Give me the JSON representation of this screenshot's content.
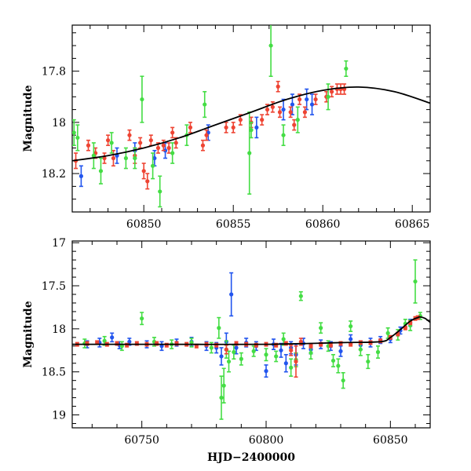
{
  "chart_data": [
    {
      "type": "scatter",
      "panel": "top",
      "xlabel": "",
      "ylabel": "Magnitude",
      "xlim": [
        60846,
        60866
      ],
      "ylim": [
        18.35,
        17.62
      ],
      "y_inverted": true,
      "x_ticks": [
        60850,
        60855,
        60860,
        60865
      ],
      "x_tick_labels": [
        "60850",
        "60855",
        "60860",
        "60865"
      ],
      "y_ticks": [
        17.8,
        18.0,
        18.2
      ],
      "y_tick_labels": [
        "17.8",
        "18",
        "18.2"
      ],
      "grid": false,
      "legend": "none",
      "series": [
        {
          "color": "#2255ee",
          "points": [
            [
              60846.5,
              18.21,
              0.04
            ],
            [
              60848.5,
              18.13,
              0.03
            ],
            [
              60849.5,
              18.11,
              0.03
            ],
            [
              60850.6,
              18.14,
              0.03
            ],
            [
              60851.2,
              18.11,
              0.03
            ],
            [
              60853.6,
              18.04,
              0.03
            ],
            [
              60856.3,
              18.02,
              0.04
            ],
            [
              60857.8,
              17.95,
              0.04
            ],
            [
              60858.3,
              17.93,
              0.04
            ],
            [
              60859.1,
              17.91,
              0.04
            ],
            [
              60859.4,
              17.93,
              0.04
            ]
          ]
        },
        {
          "color": "#ee4433",
          "points": [
            [
              60846.2,
              18.15,
              0.03
            ],
            [
              60846.9,
              18.09,
              0.02
            ],
            [
              60847.3,
              18.12,
              0.02
            ],
            [
              60847.8,
              18.14,
              0.02
            ],
            [
              60848.0,
              18.07,
              0.02
            ],
            [
              60848.3,
              18.14,
              0.03
            ],
            [
              60849.2,
              18.05,
              0.02
            ],
            [
              60849.5,
              18.13,
              0.03
            ],
            [
              60849.8,
              18.08,
              0.02
            ],
            [
              60850.0,
              18.19,
              0.03
            ],
            [
              60850.2,
              18.23,
              0.03
            ],
            [
              60850.4,
              18.07,
              0.02
            ],
            [
              60850.8,
              18.1,
              0.02
            ],
            [
              60851.1,
              18.09,
              0.02
            ],
            [
              60851.4,
              18.1,
              0.02
            ],
            [
              60851.6,
              18.04,
              0.02
            ],
            [
              60851.8,
              18.08,
              0.02
            ],
            [
              60852.6,
              18.02,
              0.02
            ],
            [
              60853.3,
              18.09,
              0.02
            ],
            [
              60853.5,
              18.05,
              0.02
            ],
            [
              60854.6,
              18.02,
              0.02
            ],
            [
              60855.0,
              18.02,
              0.02
            ],
            [
              60855.4,
              17.99,
              0.02
            ],
            [
              60856.0,
              18.0,
              0.02
            ],
            [
              60856.6,
              17.99,
              0.02
            ],
            [
              60856.9,
              17.95,
              0.02
            ],
            [
              60857.2,
              17.94,
              0.02
            ],
            [
              60857.6,
              17.96,
              0.02
            ],
            [
              60858.2,
              17.96,
              0.02
            ],
            [
              60858.7,
              17.91,
              0.02
            ],
            [
              60859.0,
              17.96,
              0.02
            ],
            [
              60859.6,
              17.91,
              0.02
            ],
            [
              60860.2,
              17.9,
              0.02
            ],
            [
              60860.5,
              17.88,
              0.02
            ],
            [
              60860.8,
              17.87,
              0.02
            ],
            [
              60861.0,
              17.87,
              0.02
            ],
            [
              60861.2,
              17.87,
              0.02
            ],
            [
              60857.5,
              17.86,
              0.02
            ],
            [
              60858.4,
              18.01,
              0.02
            ]
          ]
        },
        {
          "color": "#44dd44",
          "points": [
            [
              60846.1,
              18.04,
              0.05
            ],
            [
              60846.3,
              18.06,
              0.05
            ],
            [
              60847.2,
              18.13,
              0.05
            ],
            [
              60847.6,
              18.19,
              0.05
            ],
            [
              60848.2,
              18.08,
              0.04
            ],
            [
              60849.0,
              18.14,
              0.04
            ],
            [
              60849.5,
              18.14,
              0.04
            ],
            [
              60849.9,
              17.91,
              0.09
            ],
            [
              60850.5,
              18.17,
              0.05
            ],
            [
              60850.9,
              18.27,
              0.06
            ],
            [
              60851.6,
              18.12,
              0.04
            ],
            [
              60852.4,
              18.05,
              0.04
            ],
            [
              60853.4,
              17.93,
              0.05
            ],
            [
              60855.9,
              18.12,
              0.16
            ],
            [
              60857.1,
              17.7,
              0.12
            ],
            [
              60857.8,
              18.05,
              0.04
            ],
            [
              60858.6,
              17.99,
              0.05
            ],
            [
              60860.3,
              17.9,
              0.05
            ],
            [
              60861.3,
              17.79,
              0.03
            ],
            [
              60856.0,
              18.03,
              0.03
            ]
          ]
        }
      ],
      "model_curve": {
        "color": "#000000",
        "points": [
          [
            60846,
            18.15
          ],
          [
            60848,
            18.13
          ],
          [
            60850,
            18.1
          ],
          [
            60852,
            18.06
          ],
          [
            60854,
            18.01
          ],
          [
            60856,
            17.96
          ],
          [
            60858,
            17.91
          ],
          [
            60860,
            17.875
          ],
          [
            60862,
            17.862
          ],
          [
            60864,
            17.88
          ],
          [
            60866,
            17.925
          ]
        ]
      }
    },
    {
      "type": "scatter",
      "panel": "bottom",
      "xlabel": "HJD−2400000",
      "ylabel": "Magnitude",
      "xlim": [
        60722,
        60866
      ],
      "ylim": [
        19.15,
        16.98
      ],
      "y_inverted": true,
      "x_ticks": [
        60750,
        60800,
        60850
      ],
      "x_tick_labels": [
        "60750",
        "60800",
        "60850"
      ],
      "y_ticks": [
        17,
        17.5,
        18,
        18.5,
        19
      ],
      "y_tick_labels": [
        "17",
        "17.5",
        "18",
        "18.5",
        "19"
      ],
      "grid": false,
      "legend": "none",
      "series": [
        {
          "color": "#2255ee",
          "points": [
            [
              60728,
              18.18,
              0.04
            ],
            [
              60733,
              18.16,
              0.05
            ],
            [
              60738,
              18.1,
              0.05
            ],
            [
              60741,
              18.19,
              0.04
            ],
            [
              60745,
              18.15,
              0.04
            ],
            [
              60752,
              18.18,
              0.04
            ],
            [
              60758,
              18.2,
              0.05
            ],
            [
              60764,
              18.16,
              0.04
            ],
            [
              60770,
              18.15,
              0.05
            ],
            [
              60776,
              18.2,
              0.05
            ],
            [
              60780,
              18.22,
              0.06
            ],
            [
              60782,
              18.32,
              0.1
            ],
            [
              60784,
              18.15,
              0.1
            ],
            [
              60786,
              17.6,
              0.25
            ],
            [
              60788,
              18.22,
              0.07
            ],
            [
              60792,
              18.16,
              0.05
            ],
            [
              60796,
              18.2,
              0.05
            ],
            [
              60800,
              18.49,
              0.07
            ],
            [
              60803,
              18.18,
              0.06
            ],
            [
              60806,
              18.25,
              0.08
            ],
            [
              60808,
              18.4,
              0.1
            ],
            [
              60810,
              18.22,
              0.07
            ],
            [
              60812,
              18.3,
              0.12
            ],
            [
              60815,
              18.17,
              0.06
            ],
            [
              60818,
              18.24,
              0.05
            ],
            [
              60822,
              18.18,
              0.05
            ],
            [
              60826,
              18.2,
              0.05
            ],
            [
              60830,
              18.26,
              0.06
            ],
            [
              60834,
              18.12,
              0.05
            ],
            [
              60838,
              18.19,
              0.05
            ],
            [
              60842,
              18.16,
              0.05
            ],
            [
              60846,
              18.13,
              0.04
            ],
            [
              60850,
              18.12,
              0.04
            ],
            [
              60854,
              18.02,
              0.04
            ],
            [
              60858,
              17.93,
              0.04
            ]
          ]
        },
        {
          "color": "#44dd44",
          "points": [
            [
              60727,
              18.17,
              0.05
            ],
            [
              60735,
              18.14,
              0.05
            ],
            [
              60742,
              18.2,
              0.05
            ],
            [
              60750,
              17.88,
              0.07
            ],
            [
              60755,
              18.15,
              0.05
            ],
            [
              60762,
              18.18,
              0.05
            ],
            [
              60770,
              18.16,
              0.05
            ],
            [
              60778,
              18.22,
              0.06
            ],
            [
              60781,
              17.99,
              0.12
            ],
            [
              60782,
              18.8,
              0.25
            ],
            [
              60783,
              18.66,
              0.2
            ],
            [
              60784,
              18.24,
              0.1
            ],
            [
              60785,
              18.38,
              0.12
            ],
            [
              60787,
              18.27,
              0.08
            ],
            [
              60790,
              18.35,
              0.07
            ],
            [
              60795,
              18.26,
              0.06
            ],
            [
              60800,
              18.3,
              0.07
            ],
            [
              60804,
              18.32,
              0.06
            ],
            [
              60807,
              18.12,
              0.07
            ],
            [
              60810,
              18.45,
              0.1
            ],
            [
              60812,
              18.36,
              0.08
            ],
            [
              60814,
              17.62,
              0.05
            ],
            [
              60818,
              18.28,
              0.07
            ],
            [
              60822,
              17.99,
              0.06
            ],
            [
              60825,
              18.2,
              0.06
            ],
            [
              60827,
              18.37,
              0.07
            ],
            [
              60829,
              18.43,
              0.08
            ],
            [
              60831,
              18.6,
              0.09
            ],
            [
              60834,
              17.97,
              0.06
            ],
            [
              60838,
              18.24,
              0.07
            ],
            [
              60841,
              18.38,
              0.08
            ],
            [
              60845,
              18.27,
              0.07
            ],
            [
              60849,
              18.05,
              0.06
            ],
            [
              60853,
              18.07,
              0.06
            ],
            [
              60856,
              17.94,
              0.05
            ],
            [
              60858,
              17.96,
              0.06
            ],
            [
              60860,
              17.45,
              0.25
            ],
            [
              60862,
              17.85,
              0.04
            ]
          ]
        },
        {
          "color": "#ee4433",
          "points": [
            [
              60724,
              18.18,
              0.02
            ],
            [
              60728,
              18.17,
              0.02
            ],
            [
              60732,
              18.16,
              0.02
            ],
            [
              60736,
              18.18,
              0.02
            ],
            [
              60740,
              18.17,
              0.02
            ],
            [
              60744,
              18.19,
              0.02
            ],
            [
              60748,
              18.17,
              0.02
            ],
            [
              60752,
              18.18,
              0.02
            ],
            [
              60756,
              18.17,
              0.02
            ],
            [
              60760,
              18.19,
              0.02
            ],
            [
              60764,
              18.17,
              0.02
            ],
            [
              60768,
              18.18,
              0.02
            ],
            [
              60772,
              18.2,
              0.02
            ],
            [
              60776,
              18.18,
              0.02
            ],
            [
              60780,
              18.19,
              0.02
            ],
            [
              60784,
              18.24,
              0.05
            ],
            [
              60788,
              18.17,
              0.02
            ],
            [
              60792,
              18.18,
              0.02
            ],
            [
              60796,
              18.19,
              0.02
            ],
            [
              60800,
              18.18,
              0.02
            ],
            [
              60804,
              18.19,
              0.02
            ],
            [
              60808,
              18.17,
              0.02
            ],
            [
              60810,
              18.25,
              0.06
            ],
            [
              60812,
              18.38,
              0.18
            ],
            [
              60814,
              18.15,
              0.04
            ],
            [
              60818,
              18.2,
              0.02
            ],
            [
              60822,
              18.18,
              0.02
            ],
            [
              60826,
              18.19,
              0.02
            ],
            [
              60830,
              18.17,
              0.02
            ],
            [
              60834,
              18.18,
              0.02
            ],
            [
              60838,
              18.16,
              0.02
            ],
            [
              60842,
              18.16,
              0.02
            ],
            [
              60846,
              18.14,
              0.02
            ],
            [
              60850,
              18.1,
              0.02
            ],
            [
              60853,
              18.06,
              0.02
            ],
            [
              60856,
              17.99,
              0.02
            ],
            [
              60858,
              17.93,
              0.02
            ],
            [
              60860,
              17.88,
              0.02
            ],
            [
              60861,
              17.87,
              0.02
            ]
          ]
        }
      ],
      "model_curve": {
        "color": "#000000",
        "points": [
          [
            60722,
            18.18
          ],
          [
            60760,
            18.18
          ],
          [
            60800,
            18.18
          ],
          [
            60830,
            18.16
          ],
          [
            60846,
            18.15
          ],
          [
            60850,
            18.1
          ],
          [
            60854,
            18.01
          ],
          [
            60858,
            17.91
          ],
          [
            60861,
            17.87
          ],
          [
            60862,
            17.862
          ],
          [
            60864,
            17.88
          ],
          [
            60866,
            17.925
          ]
        ]
      }
    }
  ]
}
